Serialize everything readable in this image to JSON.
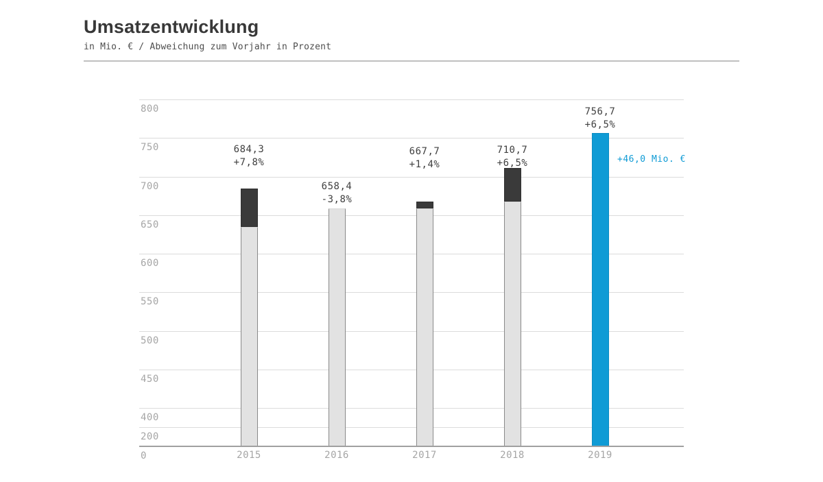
{
  "header": {
    "title": "Umsatzentwicklung",
    "subtitle": "in Mio. € / Abweichung zum Vorjahr in Prozent"
  },
  "chart_data": {
    "type": "bar",
    "title": "Umsatzentwicklung",
    "unit": "Mio. €",
    "categories": [
      "2015",
      "2016",
      "2017",
      "2018",
      "2019"
    ],
    "series": [
      {
        "name": "Umsatz in Mio. €",
        "values": [
          684.3,
          658.4,
          667.7,
          710.7,
          756.7
        ]
      }
    ],
    "change_percent_vs_previous_year": [
      7.8,
      -3.8,
      1.4,
      6.5,
      6.5
    ],
    "previous_year_values": [
      634.8,
      684.3,
      658.4,
      667.7,
      710.7
    ],
    "value_labels": [
      "684,3",
      "658,4",
      "667,7",
      "710,7",
      "756,7"
    ],
    "change_labels": [
      "+7,8%",
      "-3,8%",
      "+1,4%",
      "+6,5%",
      "+6,5%"
    ],
    "growth_cap_shown": [
      true,
      false,
      true,
      true,
      false
    ],
    "accent_bar_index": 4,
    "annotation": {
      "text": "+46,0 Mio. €"
    },
    "y_axis": {
      "ticks": [
        800,
        750,
        700,
        650,
        600,
        550,
        500,
        450,
        400,
        200,
        0
      ],
      "axis_compressed_below": 400,
      "grid": true
    },
    "colors": {
      "accent_blue": "#0f9bd5",
      "bar_fill": "#e2e2e2",
      "growth_cap": "#3a3a3a",
      "axis_text": "#a5a5a5",
      "label_text": "#3f3f3f"
    }
  }
}
